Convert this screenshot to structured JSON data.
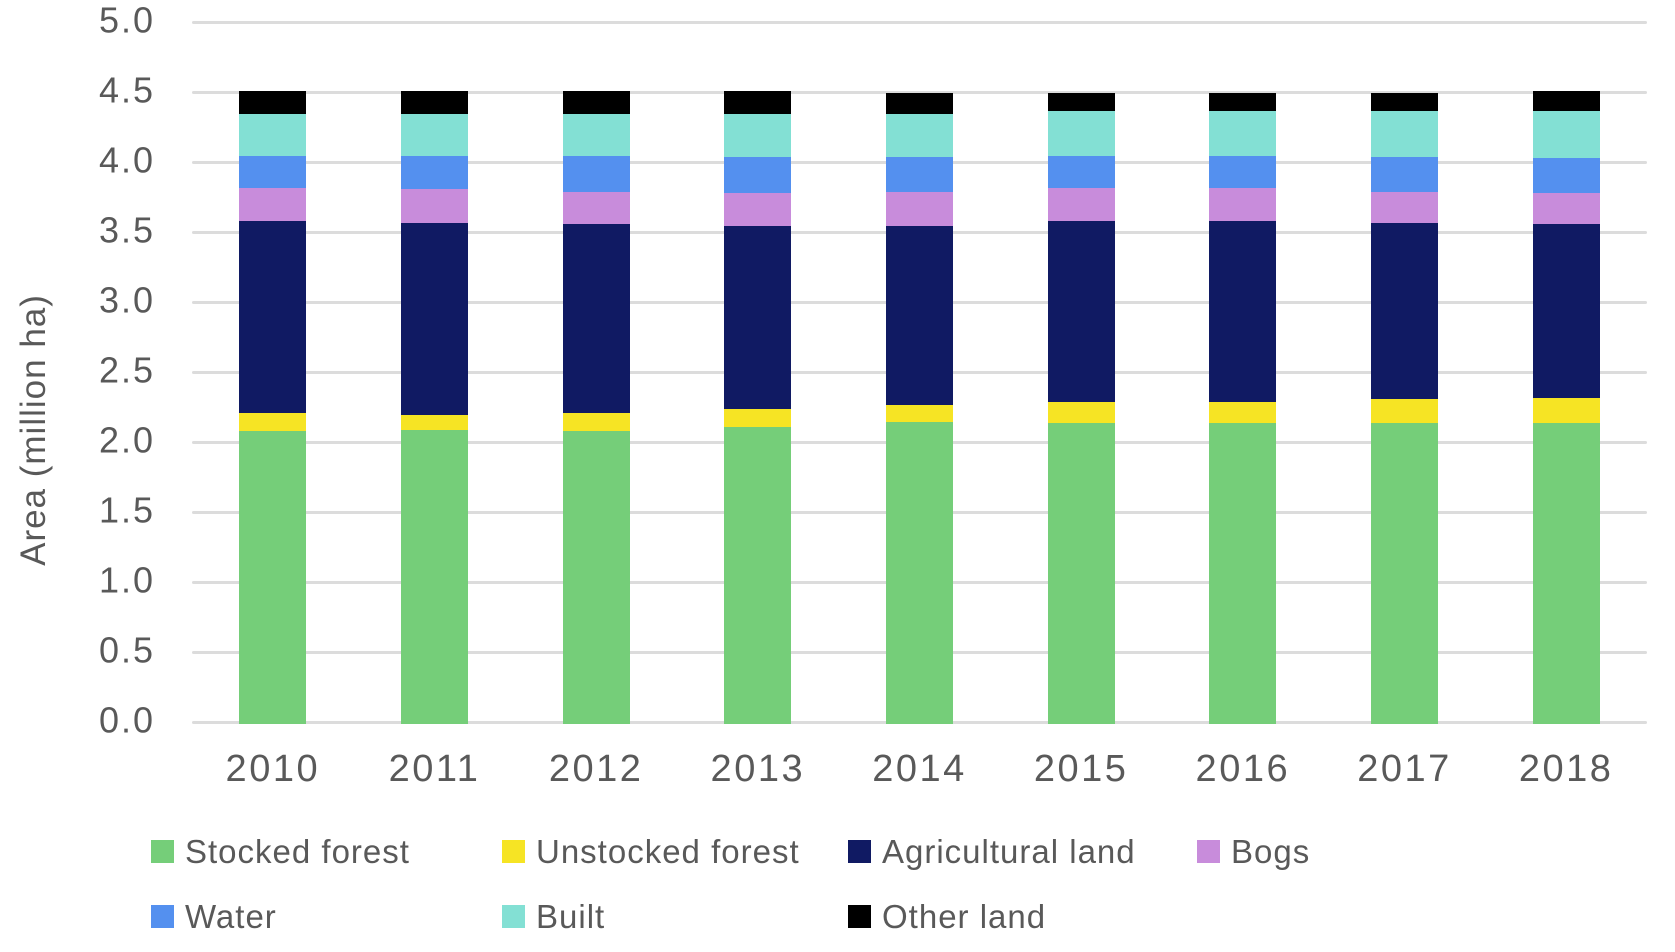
{
  "chart_data": {
    "type": "bar",
    "stacked": true,
    "title": "",
    "ylabel": "Area (million ha)",
    "xlabel": "",
    "ylim": [
      0,
      5
    ],
    "ytick_step": 0.5,
    "ytick_labels": [
      "0.0",
      "0.5",
      "1.0",
      "1.5",
      "2.0",
      "2.5",
      "3.0",
      "3.5",
      "4.0",
      "4.5",
      "5.0"
    ],
    "grid": true,
    "legend_position": "bottom",
    "legend_rows": 2,
    "legend_row_break": 4,
    "categories": [
      "2010",
      "2011",
      "2012",
      "2013",
      "2014",
      "2015",
      "2016",
      "2017",
      "2018"
    ],
    "series": [
      {
        "name": "Stocked forest",
        "color": "#75ce79",
        "values": [
          2.09,
          2.1,
          2.09,
          2.12,
          2.16,
          2.15,
          2.15,
          2.15,
          2.15
        ]
      },
      {
        "name": "Unstocked forest",
        "color": "#f6e424",
        "values": [
          0.13,
          0.11,
          0.13,
          0.13,
          0.12,
          0.15,
          0.15,
          0.17,
          0.18
        ]
      },
      {
        "name": "Agricultural land",
        "color": "#101a63",
        "values": [
          1.37,
          1.37,
          1.35,
          1.31,
          1.28,
          1.29,
          1.29,
          1.26,
          1.24
        ]
      },
      {
        "name": "Bogs",
        "color": "#c88cdb",
        "values": [
          0.24,
          0.24,
          0.23,
          0.23,
          0.24,
          0.24,
          0.24,
          0.22,
          0.22
        ]
      },
      {
        "name": "Water",
        "color": "#5490ef",
        "values": [
          0.23,
          0.24,
          0.26,
          0.26,
          0.25,
          0.23,
          0.23,
          0.25,
          0.25
        ]
      },
      {
        "name": "Built",
        "color": "#83e0d4",
        "values": [
          0.3,
          0.3,
          0.3,
          0.31,
          0.31,
          0.32,
          0.32,
          0.33,
          0.34
        ]
      },
      {
        "name": "Other land",
        "color": "#000000",
        "values": [
          0.16,
          0.16,
          0.16,
          0.16,
          0.15,
          0.13,
          0.13,
          0.13,
          0.14
        ]
      }
    ],
    "axis_text_color": "#595959",
    "gridline_color": "#dcdcdc",
    "background_color": "#ffffff"
  }
}
